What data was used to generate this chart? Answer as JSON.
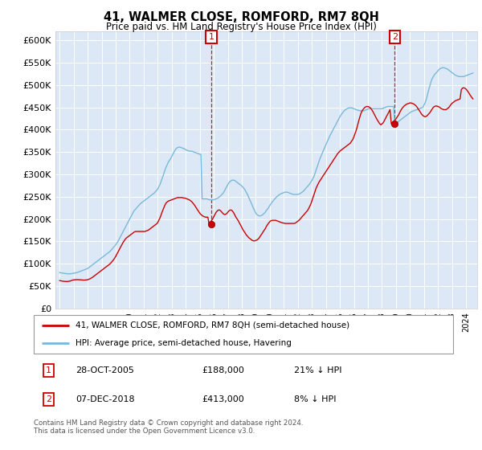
{
  "title": "41, WALMER CLOSE, ROMFORD, RM7 8QH",
  "subtitle": "Price paid vs. HM Land Registry's House Price Index (HPI)",
  "legend_line1": "41, WALMER CLOSE, ROMFORD, RM7 8QH (semi-detached house)",
  "legend_line2": "HPI: Average price, semi-detached house, Havering",
  "annotation1_label": "1",
  "annotation1_date": "28-OCT-2005",
  "annotation1_price": 188000,
  "annotation1_note": "21% ↓ HPI",
  "annotation2_label": "2",
  "annotation2_date": "07-DEC-2018",
  "annotation2_price": 413000,
  "annotation2_note": "8% ↓ HPI",
  "sale1_x": 2005.83,
  "sale2_x": 2018.92,
  "hpi_color": "#7ab8d9",
  "sale_color": "#cc0000",
  "annotation_box_color": "#cc0000",
  "plot_bg_color": "#dce8f5",
  "grid_color": "#c8d8e8",
  "ylim": [
    0,
    620000
  ],
  "xlim": [
    1994.7,
    2024.8
  ],
  "yticks": [
    0,
    50000,
    100000,
    150000,
    200000,
    250000,
    300000,
    350000,
    400000,
    450000,
    500000,
    550000,
    600000
  ],
  "footer": "Contains HM Land Registry data © Crown copyright and database right 2024.\nThis data is licensed under the Open Government Licence v3.0.",
  "hpi_years": [
    1995.0,
    1995.08,
    1995.17,
    1995.25,
    1995.33,
    1995.42,
    1995.5,
    1995.58,
    1995.67,
    1995.75,
    1995.83,
    1995.92,
    1996.0,
    1996.08,
    1996.17,
    1996.25,
    1996.33,
    1996.42,
    1996.5,
    1996.58,
    1996.67,
    1996.75,
    1996.83,
    1996.92,
    1997.0,
    1997.08,
    1997.17,
    1997.25,
    1997.33,
    1997.42,
    1997.5,
    1997.58,
    1997.67,
    1997.75,
    1997.83,
    1997.92,
    1998.0,
    1998.08,
    1998.17,
    1998.25,
    1998.33,
    1998.42,
    1998.5,
    1998.58,
    1998.67,
    1998.75,
    1998.83,
    1998.92,
    1999.0,
    1999.08,
    1999.17,
    1999.25,
    1999.33,
    1999.42,
    1999.5,
    1999.58,
    1999.67,
    1999.75,
    1999.83,
    1999.92,
    2000.0,
    2000.08,
    2000.17,
    2000.25,
    2000.33,
    2000.42,
    2000.5,
    2000.58,
    2000.67,
    2000.75,
    2000.83,
    2000.92,
    2001.0,
    2001.08,
    2001.17,
    2001.25,
    2001.33,
    2001.42,
    2001.5,
    2001.58,
    2001.67,
    2001.75,
    2001.83,
    2001.92,
    2002.0,
    2002.08,
    2002.17,
    2002.25,
    2002.33,
    2002.42,
    2002.5,
    2002.58,
    2002.67,
    2002.75,
    2002.83,
    2002.92,
    2003.0,
    2003.08,
    2003.17,
    2003.25,
    2003.33,
    2003.42,
    2003.5,
    2003.58,
    2003.67,
    2003.75,
    2003.83,
    2003.92,
    2004.0,
    2004.08,
    2004.17,
    2004.25,
    2004.33,
    2004.42,
    2004.5,
    2004.58,
    2004.67,
    2004.75,
    2004.83,
    2004.92,
    2005.0,
    2005.08,
    2005.17,
    2005.25,
    2005.33,
    2005.42,
    2005.5,
    2005.58,
    2005.67,
    2005.75,
    2005.83,
    2005.92,
    2006.0,
    2006.08,
    2006.17,
    2006.25,
    2006.33,
    2006.42,
    2006.5,
    2006.58,
    2006.67,
    2006.75,
    2006.83,
    2006.92,
    2007.0,
    2007.08,
    2007.17,
    2007.25,
    2007.33,
    2007.42,
    2007.5,
    2007.58,
    2007.67,
    2007.75,
    2007.83,
    2007.92,
    2008.0,
    2008.08,
    2008.17,
    2008.25,
    2008.33,
    2008.42,
    2008.5,
    2008.58,
    2008.67,
    2008.75,
    2008.83,
    2008.92,
    2009.0,
    2009.08,
    2009.17,
    2009.25,
    2009.33,
    2009.42,
    2009.5,
    2009.58,
    2009.67,
    2009.75,
    2009.83,
    2009.92,
    2010.0,
    2010.08,
    2010.17,
    2010.25,
    2010.33,
    2010.42,
    2010.5,
    2010.58,
    2010.67,
    2010.75,
    2010.83,
    2010.92,
    2011.0,
    2011.08,
    2011.17,
    2011.25,
    2011.33,
    2011.42,
    2011.5,
    2011.58,
    2011.67,
    2011.75,
    2011.83,
    2011.92,
    2012.0,
    2012.08,
    2012.17,
    2012.25,
    2012.33,
    2012.42,
    2012.5,
    2012.58,
    2012.67,
    2012.75,
    2012.83,
    2012.92,
    2013.0,
    2013.08,
    2013.17,
    2013.25,
    2013.33,
    2013.42,
    2013.5,
    2013.58,
    2013.67,
    2013.75,
    2013.83,
    2013.92,
    2014.0,
    2014.08,
    2014.17,
    2014.25,
    2014.33,
    2014.42,
    2014.5,
    2014.58,
    2014.67,
    2014.75,
    2014.83,
    2014.92,
    2015.0,
    2015.08,
    2015.17,
    2015.25,
    2015.33,
    2015.42,
    2015.5,
    2015.58,
    2015.67,
    2015.75,
    2015.83,
    2015.92,
    2016.0,
    2016.08,
    2016.17,
    2016.25,
    2016.33,
    2016.42,
    2016.5,
    2016.58,
    2016.67,
    2016.75,
    2016.83,
    2016.92,
    2017.0,
    2017.08,
    2017.17,
    2017.25,
    2017.33,
    2017.42,
    2017.5,
    2017.58,
    2017.67,
    2017.75,
    2017.83,
    2017.92,
    2018.0,
    2018.08,
    2018.17,
    2018.25,
    2018.33,
    2018.42,
    2018.5,
    2018.58,
    2018.67,
    2018.75,
    2018.83,
    2018.92,
    2019.0,
    2019.08,
    2019.17,
    2019.25,
    2019.33,
    2019.42,
    2019.5,
    2019.58,
    2019.67,
    2019.75,
    2019.83,
    2019.92,
    2020.0,
    2020.08,
    2020.17,
    2020.25,
    2020.33,
    2020.42,
    2020.5,
    2020.58,
    2020.67,
    2020.75,
    2020.83,
    2020.92,
    2021.0,
    2021.08,
    2021.17,
    2021.25,
    2021.33,
    2021.42,
    2021.5,
    2021.58,
    2021.67,
    2021.75,
    2021.83,
    2021.92,
    2022.0,
    2022.08,
    2022.17,
    2022.25,
    2022.33,
    2022.42,
    2022.5,
    2022.58,
    2022.67,
    2022.75,
    2022.83,
    2022.92,
    2023.0,
    2023.08,
    2023.17,
    2023.25,
    2023.33,
    2023.42,
    2023.5,
    2023.58,
    2023.67,
    2023.75,
    2023.83,
    2023.92,
    2024.0,
    2024.08,
    2024.17,
    2024.25,
    2024.33,
    2024.42,
    2024.5
  ],
  "hpi_values": [
    80000,
    79500,
    79000,
    78500,
    78000,
    77800,
    77500,
    77200,
    77000,
    77200,
    77500,
    78000,
    78500,
    79000,
    79500,
    80000,
    81000,
    82000,
    83000,
    84000,
    85000,
    86000,
    87000,
    88000,
    89000,
    91000,
    93000,
    95000,
    97000,
    99000,
    101000,
    103000,
    105000,
    107000,
    109000,
    111000,
    113000,
    115000,
    117000,
    119000,
    121000,
    123000,
    125000,
    127000,
    130000,
    133000,
    136000,
    139000,
    142000,
    146000,
    150000,
    155000,
    160000,
    165000,
    170000,
    175000,
    180000,
    185000,
    190000,
    195000,
    200000,
    205000,
    210000,
    215000,
    219000,
    222000,
    225000,
    228000,
    231000,
    234000,
    236000,
    238000,
    240000,
    242000,
    244000,
    246000,
    248000,
    250000,
    252000,
    254000,
    256000,
    258000,
    261000,
    264000,
    267000,
    272000,
    278000,
    285000,
    292000,
    300000,
    308000,
    315000,
    321000,
    327000,
    331000,
    335000,
    340000,
    345000,
    350000,
    355000,
    358000,
    360000,
    361000,
    361000,
    360000,
    359000,
    358000,
    357000,
    355000,
    354000,
    353000,
    352000,
    352000,
    352000,
    351000,
    350000,
    349000,
    348000,
    347000,
    346000,
    345000,
    345000,
    245000,
    245000,
    245000,
    245000,
    245000,
    244000,
    243000,
    243000,
    243000,
    243000,
    243000,
    244000,
    245000,
    246000,
    248000,
    250000,
    252000,
    255000,
    258000,
    262000,
    267000,
    272000,
    277000,
    281000,
    284000,
    286000,
    287000,
    287000,
    286000,
    284000,
    282000,
    280000,
    278000,
    276000,
    274000,
    271000,
    268000,
    264000,
    259000,
    254000,
    248000,
    242000,
    236000,
    230000,
    224000,
    218000,
    213000,
    210000,
    208000,
    207000,
    207000,
    208000,
    210000,
    212000,
    215000,
    219000,
    222000,
    226000,
    230000,
    234000,
    238000,
    241000,
    244000,
    247000,
    250000,
    252000,
    254000,
    256000,
    257000,
    258000,
    259000,
    260000,
    260000,
    260000,
    259000,
    258000,
    257000,
    256000,
    255000,
    255000,
    255000,
    255000,
    255000,
    256000,
    257000,
    259000,
    261000,
    263000,
    266000,
    269000,
    272000,
    275000,
    278000,
    282000,
    286000,
    291000,
    297000,
    304000,
    312000,
    320000,
    328000,
    335000,
    342000,
    348000,
    354000,
    360000,
    366000,
    372000,
    378000,
    384000,
    389000,
    394000,
    399000,
    404000,
    409000,
    414000,
    419000,
    424000,
    429000,
    433000,
    437000,
    440000,
    443000,
    445000,
    447000,
    448000,
    449000,
    449000,
    449000,
    448000,
    447000,
    446000,
    445000,
    444000,
    443000,
    443000,
    442000,
    442000,
    442000,
    443000,
    444000,
    445000,
    446000,
    447000,
    447000,
    447000,
    447000,
    447000,
    447000,
    447000,
    447000,
    447000,
    447000,
    447000,
    447000,
    448000,
    449000,
    450000,
    451000,
    452000,
    452000,
    452000,
    452000,
    452000,
    452000,
    413000,
    414000,
    416000,
    418000,
    420000,
    422000,
    424000,
    426000,
    428000,
    430000,
    432000,
    434000,
    436000,
    438000,
    440000,
    441000,
    442000,
    443000,
    444000,
    445000,
    446000,
    447000,
    448000,
    449000,
    450000,
    455000,
    460000,
    468000,
    478000,
    488000,
    498000,
    507000,
    514000,
    519000,
    523000,
    526000,
    529000,
    532000,
    535000,
    537000,
    538000,
    539000,
    539000,
    538000,
    537000,
    536000,
    534000,
    532000,
    530000,
    528000,
    526000,
    524000,
    522000,
    521000,
    520000,
    519000,
    519000,
    519000,
    519000,
    519000,
    520000,
    521000,
    522000,
    523000,
    524000,
    525000,
    526000,
    527000,
    528000,
    529000,
    530000,
    531000,
    535000,
    540000,
    545000,
    548000,
    550000,
    551000,
    552000
  ],
  "red_years": [
    1995.0,
    1995.08,
    1995.17,
    1995.25,
    1995.33,
    1995.42,
    1995.5,
    1995.58,
    1995.67,
    1995.75,
    1995.83,
    1995.92,
    1996.0,
    1996.08,
    1996.17,
    1996.25,
    1996.33,
    1996.42,
    1996.5,
    1996.58,
    1996.67,
    1996.75,
    1996.83,
    1996.92,
    1997.0,
    1997.08,
    1997.17,
    1997.25,
    1997.33,
    1997.42,
    1997.5,
    1997.58,
    1997.67,
    1997.75,
    1997.83,
    1997.92,
    1998.0,
    1998.08,
    1998.17,
    1998.25,
    1998.33,
    1998.42,
    1998.5,
    1998.58,
    1998.67,
    1998.75,
    1998.83,
    1998.92,
    1999.0,
    1999.08,
    1999.17,
    1999.25,
    1999.33,
    1999.42,
    1999.5,
    1999.58,
    1999.67,
    1999.75,
    1999.83,
    1999.92,
    2000.0,
    2000.08,
    2000.17,
    2000.25,
    2000.33,
    2000.42,
    2000.5,
    2000.58,
    2000.67,
    2000.75,
    2000.83,
    2000.92,
    2001.0,
    2001.08,
    2001.17,
    2001.25,
    2001.33,
    2001.42,
    2001.5,
    2001.58,
    2001.67,
    2001.75,
    2001.83,
    2001.92,
    2002.0,
    2002.08,
    2002.17,
    2002.25,
    2002.33,
    2002.42,
    2002.5,
    2002.58,
    2002.67,
    2002.75,
    2002.83,
    2002.92,
    2003.0,
    2003.08,
    2003.17,
    2003.25,
    2003.33,
    2003.42,
    2003.5,
    2003.58,
    2003.67,
    2003.75,
    2003.83,
    2003.92,
    2004.0,
    2004.08,
    2004.17,
    2004.25,
    2004.33,
    2004.42,
    2004.5,
    2004.58,
    2004.67,
    2004.75,
    2004.83,
    2004.92,
    2005.0,
    2005.08,
    2005.17,
    2005.25,
    2005.33,
    2005.42,
    2005.5,
    2005.58,
    2005.67,
    2005.75,
    2005.83,
    2005.92,
    2006.0,
    2006.08,
    2006.17,
    2006.25,
    2006.33,
    2006.42,
    2006.5,
    2006.58,
    2006.67,
    2006.75,
    2006.83,
    2006.92,
    2007.0,
    2007.08,
    2007.17,
    2007.25,
    2007.33,
    2007.42,
    2007.5,
    2007.58,
    2007.67,
    2007.75,
    2007.83,
    2007.92,
    2008.0,
    2008.08,
    2008.17,
    2008.25,
    2008.33,
    2008.42,
    2008.5,
    2008.58,
    2008.67,
    2008.75,
    2008.83,
    2008.92,
    2009.0,
    2009.08,
    2009.17,
    2009.25,
    2009.33,
    2009.42,
    2009.5,
    2009.58,
    2009.67,
    2009.75,
    2009.83,
    2009.92,
    2010.0,
    2010.08,
    2010.17,
    2010.25,
    2010.33,
    2010.42,
    2010.5,
    2010.58,
    2010.67,
    2010.75,
    2010.83,
    2010.92,
    2011.0,
    2011.08,
    2011.17,
    2011.25,
    2011.33,
    2011.42,
    2011.5,
    2011.58,
    2011.67,
    2011.75,
    2011.83,
    2011.92,
    2012.0,
    2012.08,
    2012.17,
    2012.25,
    2012.33,
    2012.42,
    2012.5,
    2012.58,
    2012.67,
    2012.75,
    2012.83,
    2012.92,
    2013.0,
    2013.08,
    2013.17,
    2013.25,
    2013.33,
    2013.42,
    2013.5,
    2013.58,
    2013.67,
    2013.75,
    2013.83,
    2013.92,
    2014.0,
    2014.08,
    2014.17,
    2014.25,
    2014.33,
    2014.42,
    2014.5,
    2014.58,
    2014.67,
    2014.75,
    2014.83,
    2014.92,
    2015.0,
    2015.08,
    2015.17,
    2015.25,
    2015.33,
    2015.42,
    2015.5,
    2015.58,
    2015.67,
    2015.75,
    2015.83,
    2015.92,
    2016.0,
    2016.08,
    2016.17,
    2016.25,
    2016.33,
    2016.42,
    2016.5,
    2016.58,
    2016.67,
    2016.75,
    2016.83,
    2016.92,
    2017.0,
    2017.08,
    2017.17,
    2017.25,
    2017.33,
    2017.42,
    2017.5,
    2017.58,
    2017.67,
    2017.75,
    2017.83,
    2017.92,
    2018.0,
    2018.08,
    2018.17,
    2018.25,
    2018.33,
    2018.42,
    2018.5,
    2018.58,
    2018.67,
    2018.75,
    2018.83,
    2018.92,
    2019.0,
    2019.08,
    2019.17,
    2019.25,
    2019.33,
    2019.42,
    2019.5,
    2019.58,
    2019.67,
    2019.75,
    2019.83,
    2019.92,
    2020.0,
    2020.08,
    2020.17,
    2020.25,
    2020.33,
    2020.42,
    2020.5,
    2020.58,
    2020.67,
    2020.75,
    2020.83,
    2020.92,
    2021.0,
    2021.08,
    2021.17,
    2021.25,
    2021.33,
    2021.42,
    2021.5,
    2021.58,
    2021.67,
    2021.75,
    2021.83,
    2021.92,
    2022.0,
    2022.08,
    2022.17,
    2022.25,
    2022.33,
    2022.42,
    2022.5,
    2022.58,
    2022.67,
    2022.75,
    2022.83,
    2022.92,
    2023.0,
    2023.08,
    2023.17,
    2023.25,
    2023.33,
    2023.42,
    2023.5,
    2023.58,
    2023.67,
    2023.75,
    2023.83,
    2023.92,
    2024.0,
    2024.08,
    2024.17,
    2024.25,
    2024.33,
    2024.42,
    2024.5
  ],
  "red_values": [
    62000,
    61500,
    61000,
    60500,
    60200,
    60000,
    60000,
    60000,
    60500,
    61000,
    62000,
    63000,
    63500,
    63800,
    64000,
    64200,
    64000,
    63800,
    63500,
    63200,
    63000,
    63000,
    63200,
    63500,
    64000,
    65000,
    66000,
    67500,
    69000,
    71000,
    73000,
    75000,
    77000,
    79000,
    81000,
    83000,
    85000,
    87000,
    89000,
    91000,
    93000,
    95000,
    97000,
    99000,
    102000,
    105000,
    108000,
    112000,
    116000,
    121000,
    126000,
    131000,
    136000,
    141000,
    146000,
    150000,
    154000,
    157000,
    159000,
    161000,
    163000,
    165000,
    167000,
    169000,
    171000,
    172000,
    172000,
    172000,
    172000,
    172000,
    172000,
    172000,
    172000,
    172000,
    173000,
    174000,
    175000,
    177000,
    179000,
    181000,
    183000,
    185000,
    187000,
    189000,
    192000,
    197000,
    203000,
    210000,
    217000,
    224000,
    230000,
    235000,
    238000,
    240000,
    241000,
    242000,
    243000,
    244000,
    245000,
    246000,
    247000,
    248000,
    248000,
    248000,
    248000,
    248000,
    247000,
    247000,
    246000,
    245000,
    244000,
    243000,
    241000,
    239000,
    236000,
    233000,
    229000,
    225000,
    221000,
    217000,
    213000,
    210000,
    208000,
    206000,
    205000,
    204000,
    204000,
    204000,
    188000,
    192000,
    196000,
    200000,
    205000,
    210000,
    215000,
    218000,
    220000,
    220000,
    218000,
    215000,
    212000,
    210000,
    210000,
    212000,
    215000,
    218000,
    220000,
    220000,
    218000,
    214000,
    209000,
    204000,
    200000,
    196000,
    191000,
    186000,
    181000,
    176000,
    172000,
    168000,
    164000,
    161000,
    158000,
    156000,
    154000,
    152000,
    151000,
    151000,
    152000,
    153000,
    155000,
    158000,
    162000,
    166000,
    170000,
    174000,
    178000,
    183000,
    187000,
    191000,
    194000,
    196000,
    197000,
    197000,
    197000,
    197000,
    196000,
    195000,
    194000,
    193000,
    192000,
    191000,
    191000,
    190000,
    190000,
    190000,
    190000,
    190000,
    190000,
    190000,
    190000,
    190000,
    191000,
    193000,
    195000,
    197000,
    200000,
    203000,
    206000,
    209000,
    212000,
    215000,
    218000,
    222000,
    227000,
    233000,
    240000,
    248000,
    256000,
    264000,
    271000,
    277000,
    282000,
    286000,
    290000,
    294000,
    298000,
    302000,
    306000,
    310000,
    314000,
    318000,
    322000,
    326000,
    330000,
    334000,
    338000,
    342000,
    346000,
    349000,
    352000,
    354000,
    356000,
    358000,
    360000,
    362000,
    364000,
    366000,
    368000,
    370000,
    374000,
    378000,
    384000,
    391000,
    399000,
    408000,
    418000,
    428000,
    436000,
    442000,
    446000,
    449000,
    451000,
    452000,
    452000,
    451000,
    449000,
    446000,
    442000,
    437000,
    432000,
    427000,
    422000,
    418000,
    414000,
    411000,
    413000,
    415000,
    420000,
    425000,
    430000,
    435000,
    440000,
    445000,
    413000,
    416000,
    418000,
    421000,
    424000,
    428000,
    432000,
    437000,
    442000,
    447000,
    450000,
    453000,
    455000,
    457000,
    458000,
    459000,
    460000,
    460000,
    459000,
    458000,
    456000,
    454000,
    451000,
    447000,
    443000,
    439000,
    435000,
    432000,
    430000,
    429000,
    430000,
    432000,
    435000,
    438000,
    442000,
    446000,
    450000,
    452000,
    453000,
    453000,
    452000,
    451000,
    449000,
    447000,
    446000,
    445000,
    445000,
    445000,
    447000,
    449000,
    452000,
    456000,
    459000,
    461000,
    463000,
    465000,
    466000,
    467000,
    468000,
    469000,
    490000,
    493000,
    494000,
    493000,
    491000,
    488000,
    484000,
    480000,
    476000,
    472000,
    469000,
    467000,
    465000,
    464000,
    464000,
    465000,
    466000,
    467000,
    468000
  ]
}
